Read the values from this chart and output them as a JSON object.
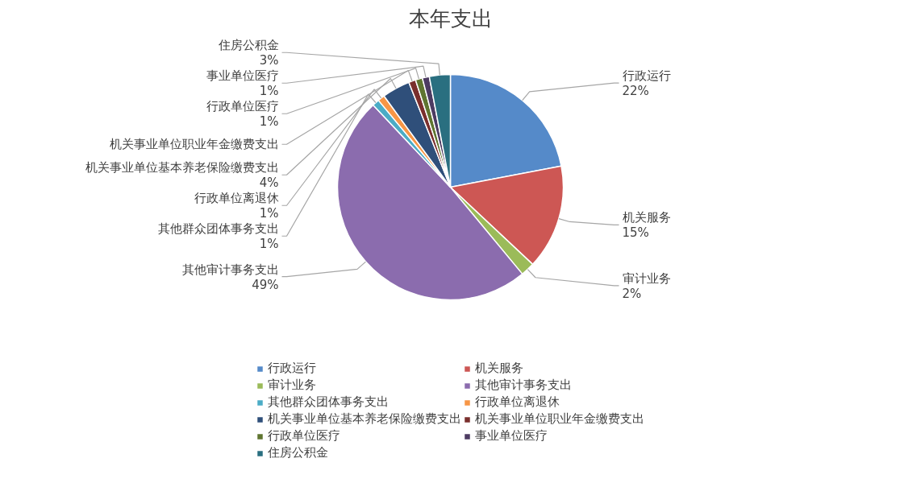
{
  "chart_data": {
    "type": "pie",
    "title": "本年支出",
    "categories": [
      "行政运行",
      "机关服务",
      "审计业务",
      "其他审计事务支出",
      "其他群众团体事务支出",
      "行政单位离退休",
      "机关事业单位基本养老保险缴费支出",
      "机关事业单位职业年金缴费支出",
      "行政单位医疗",
      "事业单位医疗",
      "住房公积金"
    ],
    "values": [
      22,
      15,
      2,
      49,
      1,
      1,
      4,
      1,
      1,
      1,
      3
    ],
    "value_labels": [
      "22%",
      "15%",
      "2%",
      "49%",
      "1%",
      "1%",
      "4%",
      null,
      "1%",
      "1%",
      "3%"
    ],
    "colors": [
      "#558ac9",
      "#cd5754",
      "#9bbb59",
      "#8b6cae",
      "#4bacc6",
      "#f79646",
      "#2f4f7a",
      "#7a2f2d",
      "#5f7530",
      "#4d3b62",
      "#2a6f80"
    ],
    "legend": "bottom"
  }
}
